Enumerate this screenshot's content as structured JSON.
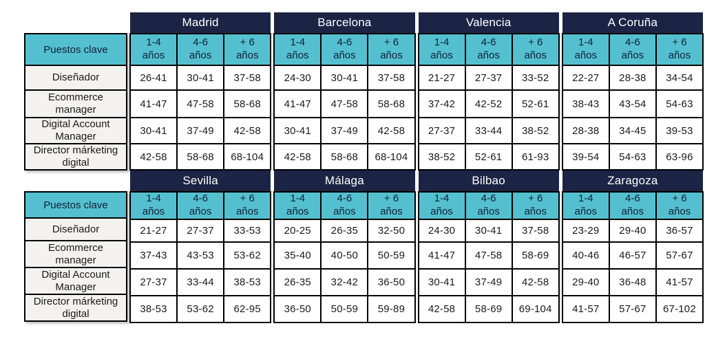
{
  "colors": {
    "navy": "#1c2445",
    "teal": "#54c0cf",
    "label_bg": "#f4f2ee",
    "border": "#000000",
    "header_text": "#ffffff",
    "text": "#1a1a1a"
  },
  "row_header": "Puestos clave",
  "experience_columns": [
    {
      "range": "1-4",
      "unit": "años"
    },
    {
      "range": "4-6",
      "unit": "años"
    },
    {
      "range": "+ 6",
      "unit": "años"
    }
  ],
  "blocks": [
    {
      "cities": [
        "Madrid",
        "Barcelona",
        "Valencia",
        "A Coruña"
      ],
      "rows": [
        {
          "position": "Diseñador",
          "values": [
            [
              "26-41",
              "30-41",
              "37-58"
            ],
            [
              "24-30",
              "30-41",
              "37-58"
            ],
            [
              "21-27",
              "27-37",
              "33-52"
            ],
            [
              "22-27",
              "28-38",
              "34-54"
            ]
          ]
        },
        {
          "position": "Ecommerce manager",
          "values": [
            [
              "41-47",
              "47-58",
              "58-68"
            ],
            [
              "41-47",
              "47-58",
              "58-68"
            ],
            [
              "37-42",
              "42-52",
              "52-61"
            ],
            [
              "38-43",
              "43-54",
              "54-63"
            ]
          ]
        },
        {
          "position": "Digital Account Manager",
          "values": [
            [
              "30-41",
              "37-49",
              "42-58"
            ],
            [
              "30-41",
              "37-49",
              "42-58"
            ],
            [
              "27-37",
              "33-44",
              "38-52"
            ],
            [
              "28-38",
              "34-45",
              "39-53"
            ]
          ]
        },
        {
          "position": "Director márketing digital",
          "values": [
            [
              "42-58",
              "58-68",
              "68-104"
            ],
            [
              "42-58",
              "58-68",
              "68-104"
            ],
            [
              "38-52",
              "52-61",
              "61-93"
            ],
            [
              "39-54",
              "54-63",
              "63-96"
            ]
          ]
        }
      ]
    },
    {
      "cities": [
        "Sevilla",
        "Málaga",
        "Bilbao",
        "Zaragoza"
      ],
      "rows": [
        {
          "position": "Diseñador",
          "values": [
            [
              "21-27",
              "27-37",
              "33-53"
            ],
            [
              "20-25",
              "26-35",
              "32-50"
            ],
            [
              "24-30",
              "30-41",
              "37-58"
            ],
            [
              "23-29",
              "29-40",
              "36-57"
            ]
          ]
        },
        {
          "position": "Ecommerce manager",
          "values": [
            [
              "37-43",
              "43-53",
              "53-62"
            ],
            [
              "35-40",
              "40-50",
              "50-59"
            ],
            [
              "41-47",
              "47-58",
              "58-69"
            ],
            [
              "40-46",
              "46-57",
              "57-67"
            ]
          ]
        },
        {
          "position": "Digital Account Manager",
          "values": [
            [
              "27-37",
              "33-44",
              "38-53"
            ],
            [
              "26-35",
              "32-42",
              "36-50"
            ],
            [
              "30-41",
              "37-49",
              "42-58"
            ],
            [
              "29-40",
              "36-48",
              "41-57"
            ]
          ]
        },
        {
          "position": "Director márketing digital",
          "values": [
            [
              "38-53",
              "53-62",
              "62-95"
            ],
            [
              "36-50",
              "50-59",
              "59-89"
            ],
            [
              "42-58",
              "58-69",
              "69-104"
            ],
            [
              "41-57",
              "57-67",
              "67-102"
            ]
          ]
        }
      ]
    }
  ]
}
